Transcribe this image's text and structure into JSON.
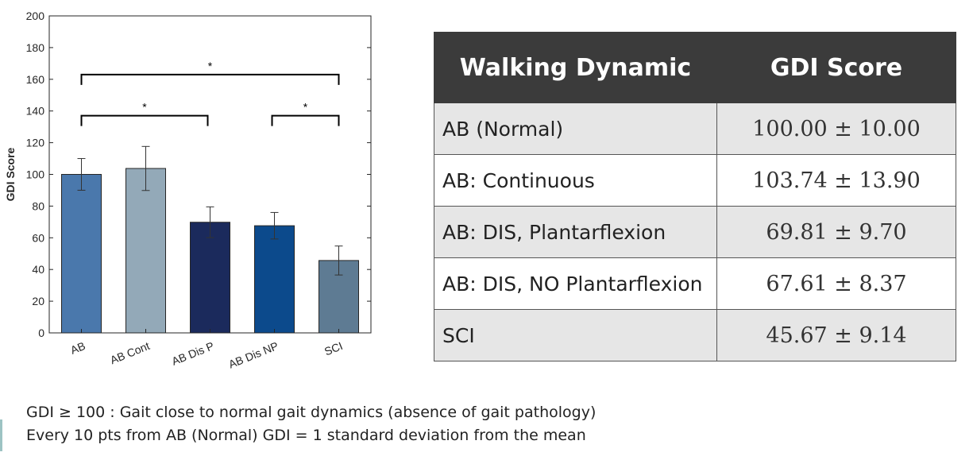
{
  "chart_data": {
    "type": "bar",
    "categories": [
      "AB",
      "AB Cont",
      "AB Dis P",
      "AB Dis NP",
      "SCI"
    ],
    "values": [
      100.0,
      103.74,
      69.81,
      67.61,
      45.67
    ],
    "errors": [
      10.0,
      13.9,
      9.7,
      8.37,
      9.14
    ],
    "colors": [
      "#4a78ac",
      "#93a9b8",
      "#1b2a5c",
      "#0c4a8c",
      "#5e7b93"
    ],
    "title": "",
    "xlabel": "",
    "ylabel": "GDI Score",
    "ylim": [
      0,
      200
    ],
    "yticks": [
      "0",
      "20",
      "40",
      "60",
      "80",
      "100",
      "120",
      "140",
      "160",
      "180",
      "200"
    ],
    "grid": false,
    "significance": [
      {
        "from": "AB",
        "to": "SCI",
        "level": 163,
        "label": "*"
      },
      {
        "from": "AB",
        "to": "AB Dis P",
        "level": 137,
        "label": "*"
      },
      {
        "from": "AB Dis NP",
        "to": "SCI",
        "level": 137,
        "label": "*"
      }
    ]
  },
  "table": {
    "headers": [
      "Walking Dynamic",
      "GDI Score"
    ],
    "rows": [
      {
        "label": "AB (Normal)",
        "value": "100.00  ± 10.00"
      },
      {
        "label": "AB: Continuous",
        "value": "103.74  ± 13.90"
      },
      {
        "label": "AB: DIS, Plantarflexion",
        "value": "69.81  ± 9.70"
      },
      {
        "label": "AB: DIS, NO Plantarflexion",
        "value": "67.61  ± 8.37"
      },
      {
        "label": "SCI",
        "value": "45.67  ± 9.14"
      }
    ]
  },
  "notes": {
    "line1": "GDI ≥ 100 : Gait close to normal gait dynamics (absence of gait pathology)",
    "line2": "Every 10 pts from AB (Normal) GDI = 1 standard deviation from the mean"
  }
}
